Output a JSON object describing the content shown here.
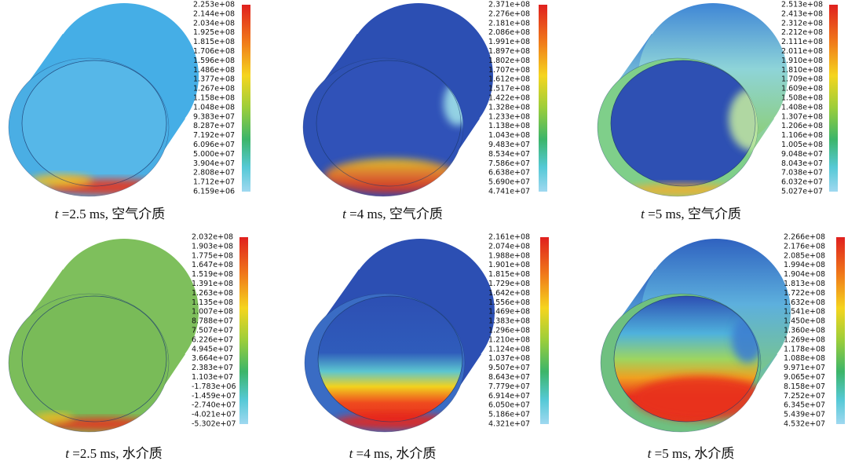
{
  "panels": [
    {
      "caption_var": "t",
      "caption_rest": " =2.5 ms, 空气介质",
      "legend_labels": [
        "2.253e+08",
        "2.144e+08",
        "2.034e+08",
        "1.925e+08",
        "1.815e+08",
        "1.706e+08",
        "1.596e+08",
        "1.486e+08",
        "1.377e+08",
        "1.267e+08",
        "1.158e+08",
        "1.048e+08",
        "9.383e+07",
        "8.287e+07",
        "7.192e+07",
        "6.096e+07",
        "5.000e+07",
        "3.904e+07",
        "2.808e+07",
        "1.712e+07",
        "6.159e+06"
      ]
    },
    {
      "caption_var": "t",
      "caption_rest": " =4 ms, 空气介质",
      "legend_labels": [
        "2.371e+08",
        "2.276e+08",
        "2.181e+08",
        "2.086e+08",
        "1.991e+08",
        "1.897e+08",
        "1.802e+08",
        "1.707e+08",
        "1.612e+08",
        "1.517e+08",
        "1.422e+08",
        "1.328e+08",
        "1.233e+08",
        "1.138e+08",
        "1.043e+08",
        "9.483e+07",
        "8.534e+07",
        "7.586e+07",
        "6.638e+07",
        "5.690e+07",
        "4.741e+07"
      ]
    },
    {
      "caption_var": "t",
      "caption_rest": " =5 ms, 空气介质",
      "legend_labels": [
        "2.513e+08",
        "2.413e+08",
        "2.312e+08",
        "2.212e+08",
        "2.111e+08",
        "2.011e+08",
        "1.910e+08",
        "1.810e+08",
        "1.709e+08",
        "1.609e+08",
        "1.508e+08",
        "1.408e+08",
        "1.307e+08",
        "1.206e+08",
        "1.106e+08",
        "1.005e+08",
        "9.048e+07",
        "8.043e+07",
        "7.038e+07",
        "6.032e+07",
        "5.027e+07"
      ]
    },
    {
      "caption_var": "t",
      "caption_rest": " =2.5 ms, 水介质",
      "legend_labels": [
        "2.032e+08",
        "1.903e+08",
        "1.775e+08",
        "1.647e+08",
        "1.519e+08",
        "1.391e+08",
        "1.263e+08",
        "1.135e+08",
        "1.007e+08",
        "8.788e+07",
        "7.507e+07",
        "6.226e+07",
        "4.945e+07",
        "3.664e+07",
        "2.383e+07",
        "1.103e+07",
        "-1.783e+06",
        "-1.459e+07",
        "-2.740e+07",
        "-4.021e+07",
        "-5.302e+07"
      ]
    },
    {
      "caption_var": "t",
      "caption_rest": " =4 ms, 水介质",
      "legend_labels": [
        "2.161e+08",
        "2.074e+08",
        "1.988e+08",
        "1.901e+08",
        "1.815e+08",
        "1.729e+08",
        "1.642e+08",
        "1.556e+08",
        "1.469e+08",
        "1.383e+08",
        "1.296e+08",
        "1.210e+08",
        "1.124e+08",
        "1.037e+08",
        "9.507e+07",
        "8.643e+07",
        "7.779e+07",
        "6.914e+07",
        "6.050e+07",
        "5.186e+07",
        "4.321e+07"
      ]
    },
    {
      "caption_var": "t",
      "caption_rest": " =5 ms, 水介质",
      "legend_labels": [
        "2.266e+08",
        "2.176e+08",
        "2.085e+08",
        "1.994e+08",
        "1.904e+08",
        "1.813e+08",
        "1.722e+08",
        "1.632e+08",
        "1.541e+08",
        "1.450e+08",
        "1.360e+08",
        "1.269e+08",
        "1.178e+08",
        "1.088e+08",
        "9.971e+07",
        "9.065e+07",
        "8.158e+07",
        "7.252e+07",
        "6.345e+07",
        "5.439e+07",
        "4.532e+07"
      ]
    }
  ]
}
